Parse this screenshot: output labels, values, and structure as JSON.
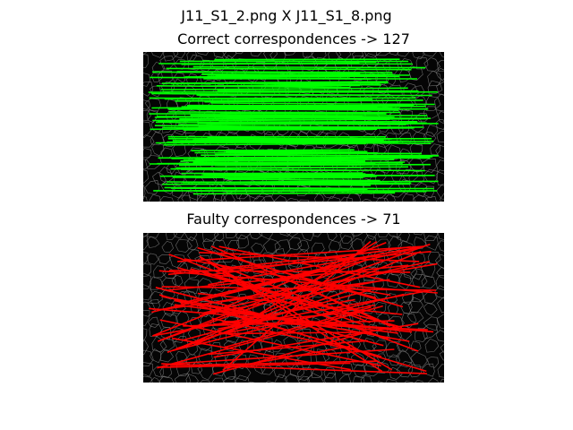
{
  "figure": {
    "title": "J11_S1_2.png  X  J11_S1_8.png"
  },
  "panels": [
    {
      "title": "Correct correspondences -> 127",
      "line_color": "#00ff00",
      "count": 127
    },
    {
      "title": "Faulty correspondences -> 71",
      "line_color": "#ff0000",
      "count": 71
    }
  ],
  "colors": {
    "background": "#050505",
    "cell_edges": "#8a8a8a"
  }
}
